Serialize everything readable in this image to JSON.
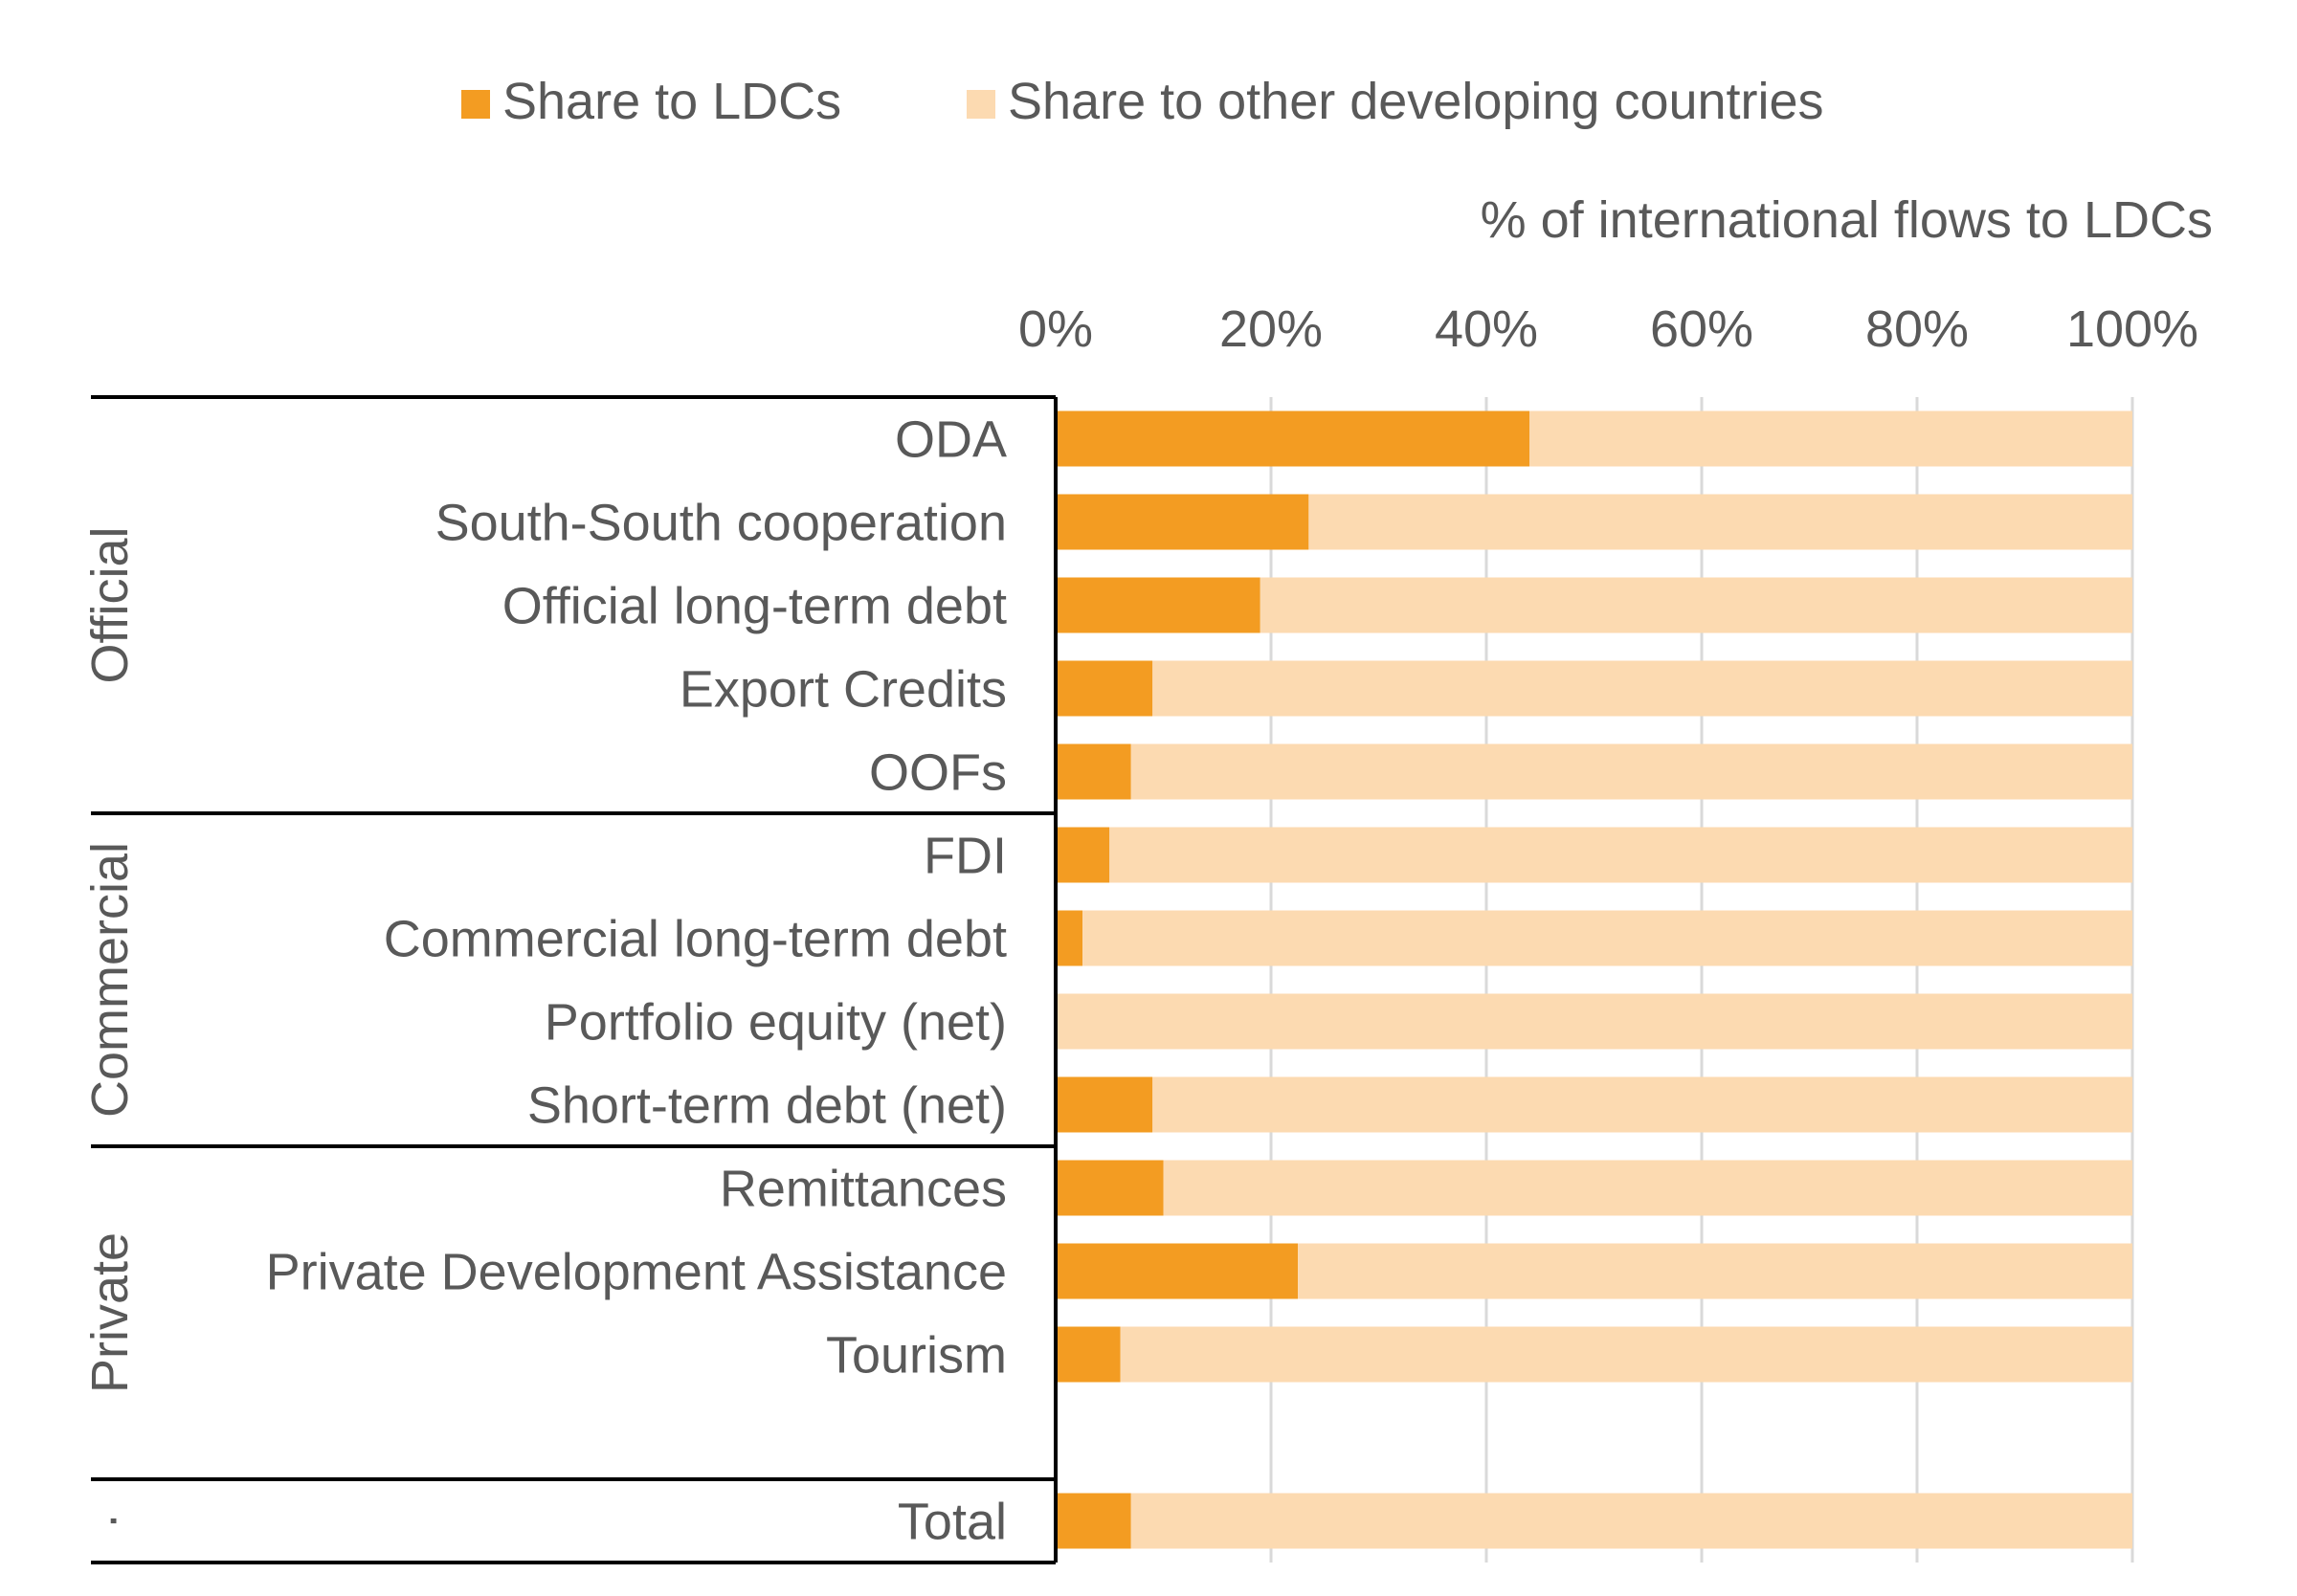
{
  "chart_data": {
    "type": "bar",
    "orientation": "horizontal",
    "stacked": true,
    "title": "% of international flows to LDCs",
    "legend": {
      "placement": "top",
      "entries": [
        {
          "label": "Share to LDCs",
          "color": "#F39C22"
        },
        {
          "label": "Share to other developing countries",
          "color": "#FCDAB1"
        }
      ]
    },
    "xaxis": {
      "range": [
        0,
        100
      ],
      "unit": "%",
      "ticks": [
        0,
        20,
        40,
        60,
        80,
        100
      ],
      "tick_labels": [
        "0%",
        "20%",
        "40%",
        "60%",
        "80%",
        "100%"
      ],
      "gridlines": true,
      "position": "top"
    },
    "groups": [
      {
        "label": "Official",
        "categories": [
          "ODA",
          "South-South cooperation",
          "Official long-term debt",
          "Export Credits",
          "OOFs"
        ]
      },
      {
        "label": "Commercial",
        "categories": [
          "FDI",
          "Commercial long-term debt",
          "Portfolio equity (net)",
          "Short-term debt (net)"
        ]
      },
      {
        "label": "Private",
        "categories": [
          "Remittances",
          "Private Development Assistance",
          "Tourism"
        ]
      },
      {
        "label": "·",
        "categories": [
          "Total"
        ]
      }
    ],
    "categories": [
      "ODA",
      "South-South cooperation",
      "Official long-term debt",
      "Export Credits",
      "OOFs",
      "FDI",
      "Commercial long-term debt",
      "Portfolio equity (net)",
      "Short-term debt (net)",
      "Remittances",
      "Private Development Assistance",
      "Tourism",
      "Total"
    ],
    "series": [
      {
        "name": "Share to LDCs",
        "color": "#F39C22",
        "values": [
          44,
          23.5,
          19,
          9,
          7,
          5,
          2.5,
          0,
          9,
          10,
          22.5,
          6,
          7
        ]
      },
      {
        "name": "Share to other developing countries",
        "color": "#FCDAB1",
        "values": [
          56,
          76.5,
          81,
          91,
          93,
          95,
          97.5,
          100,
          91,
          90,
          77.5,
          94,
          93
        ]
      }
    ]
  }
}
